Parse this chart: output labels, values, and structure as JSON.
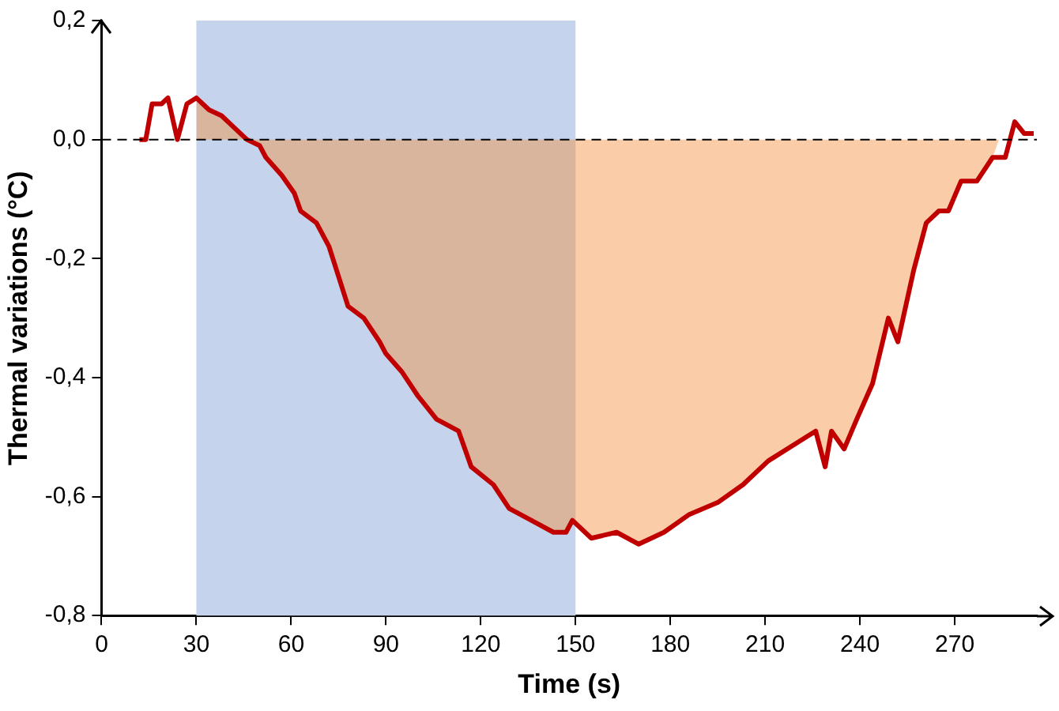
{
  "chart_data": {
    "type": "line",
    "xlabel": "Time (s)",
    "ylabel": "Thermal variations (°C)",
    "xlim": [
      0,
      296
    ],
    "xticks": [
      0,
      30,
      60,
      90,
      120,
      150,
      180,
      210,
      240,
      270
    ],
    "ylim": [
      -0.8,
      0.2
    ],
    "yticks": [
      {
        "value": -0.8,
        "label": "-0,8"
      },
      {
        "value": -0.6,
        "label": "-0,6"
      },
      {
        "value": -0.4,
        "label": "-0,4"
      },
      {
        "value": -0.2,
        "label": "-0,2"
      },
      {
        "value": 0,
        "label": "0,0"
      },
      {
        "value": 0.2,
        "label": "0,2"
      }
    ],
    "bands": [
      {
        "axis": "x",
        "from": 30,
        "to": 150,
        "color": "#c5d3ec"
      }
    ],
    "ref_lines": [
      {
        "axis": "y",
        "value": 0,
        "color": "#000000",
        "line_style": "dashed"
      }
    ],
    "series": [
      {
        "type": "area",
        "color": "#f4913f",
        "x": [
          30,
          34,
          38,
          42,
          46,
          50,
          52,
          57,
          61,
          63,
          68,
          72,
          75,
          78,
          83,
          88,
          90,
          95,
          100,
          106,
          113,
          117,
          124,
          129,
          136,
          143,
          147,
          149,
          155,
          163,
          170,
          178,
          186,
          195,
          203,
          211,
          220,
          226,
          229,
          231,
          235,
          239,
          244,
          249,
          252,
          257,
          261,
          265,
          268,
          272,
          277,
          282,
          284
        ],
        "values": [
          0.07,
          0.05,
          0.04,
          0.02,
          0.0,
          -0.01,
          -0.03,
          -0.06,
          -0.09,
          -0.12,
          -0.14,
          -0.18,
          -0.23,
          -0.28,
          -0.3,
          -0.34,
          -0.36,
          -0.39,
          -0.43,
          -0.47,
          -0.49,
          -0.55,
          -0.58,
          -0.62,
          -0.64,
          -0.66,
          -0.66,
          -0.64,
          -0.67,
          -0.66,
          -0.68,
          -0.66,
          -0.63,
          -0.61,
          -0.58,
          -0.54,
          -0.51,
          -0.49,
          -0.55,
          -0.49,
          -0.52,
          -0.47,
          -0.41,
          -0.3,
          -0.34,
          -0.22,
          -0.14,
          -0.12,
          -0.12,
          -0.07,
          -0.07,
          -0.03,
          0.0
        ]
      },
      {
        "type": "line",
        "color": "#c00000",
        "x": [
          12,
          14,
          16,
          19,
          21,
          24,
          27,
          30,
          34,
          38,
          42,
          46,
          50,
          52,
          57,
          61,
          63,
          68,
          72,
          75,
          78,
          83,
          88,
          90,
          95,
          100,
          106,
          113,
          117,
          124,
          129,
          136,
          143,
          147,
          149,
          155,
          163,
          170,
          178,
          186,
          195,
          203,
          211,
          220,
          226,
          229,
          231,
          235,
          239,
          244,
          249,
          252,
          257,
          261,
          265,
          268,
          272,
          277,
          282,
          286,
          289,
          292,
          295
        ],
        "values": [
          0.0,
          0.0,
          0.06,
          0.06,
          0.07,
          0.0,
          0.06,
          0.07,
          0.05,
          0.04,
          0.02,
          0.0,
          -0.01,
          -0.03,
          -0.06,
          -0.09,
          -0.12,
          -0.14,
          -0.18,
          -0.23,
          -0.28,
          -0.3,
          -0.34,
          -0.36,
          -0.39,
          -0.43,
          -0.47,
          -0.49,
          -0.55,
          -0.58,
          -0.62,
          -0.64,
          -0.66,
          -0.66,
          -0.64,
          -0.67,
          -0.66,
          -0.68,
          -0.66,
          -0.63,
          -0.61,
          -0.58,
          -0.54,
          -0.51,
          -0.49,
          -0.55,
          -0.49,
          -0.52,
          -0.47,
          -0.41,
          -0.3,
          -0.34,
          -0.22,
          -0.14,
          -0.12,
          -0.12,
          -0.07,
          -0.07,
          -0.03,
          -0.03,
          0.03,
          0.01,
          0.01
        ]
      }
    ]
  }
}
